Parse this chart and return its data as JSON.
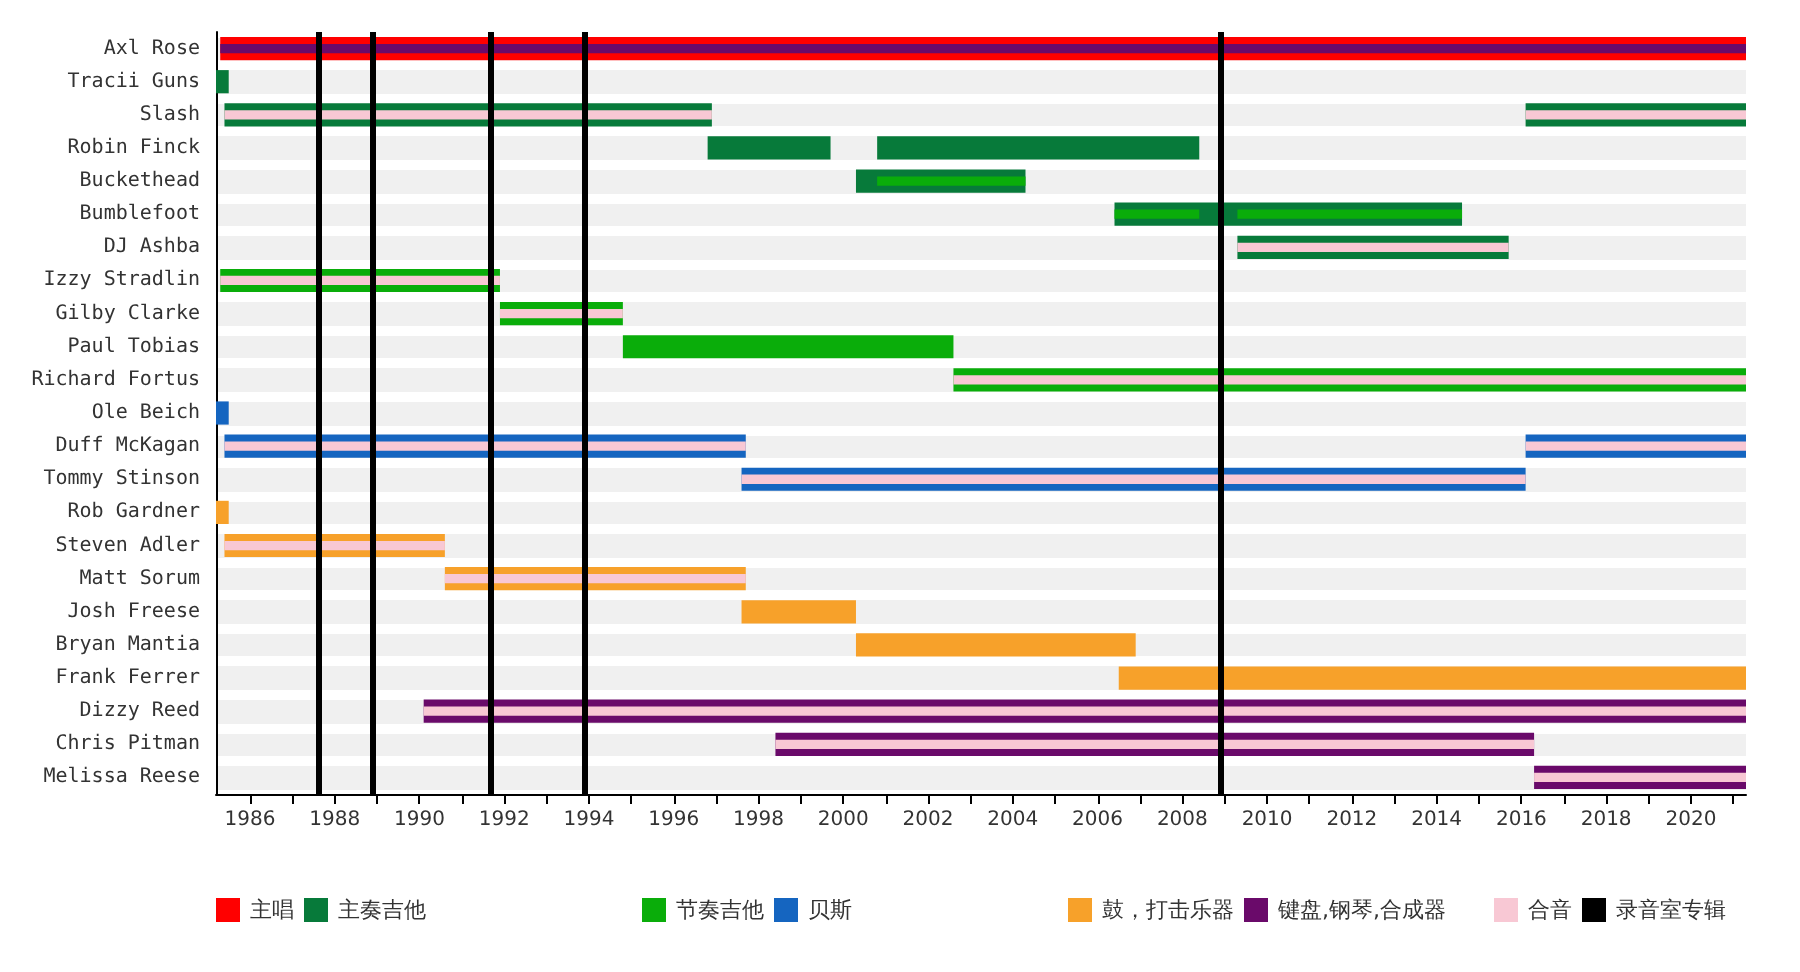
{
  "chart_data": {
    "type": "bar",
    "orientation": "horizontal",
    "categories": [
      "Axl Rose",
      "Tracii Guns",
      "Slash",
      "Robin Finck",
      "Buckethead",
      "Bumblefoot",
      "DJ Ashba",
      "Izzy Stradlin",
      "Gilby Clarke",
      "Paul Tobias",
      "Richard Fortus",
      "Ole Beich",
      "Duff McKagan",
      "Tommy Stinson",
      "Rob Gardner",
      "Steven Adler",
      "Matt Sorum",
      "Josh Freese",
      "Bryan Mantia",
      "Frank Ferrer",
      "Dizzy Reed",
      "Chris Pitman",
      "Melissa Reese"
    ],
    "series": [
      {
        "name": "主唱",
        "color": "#ff0000",
        "base": [
          1985.3,
          null,
          null,
          null,
          null,
          null,
          null,
          null,
          null,
          null,
          null,
          null,
          null,
          null,
          null,
          null,
          null,
          null,
          null,
          null,
          null,
          null,
          null
        ],
        "values": [
          36.0,
          null,
          null,
          null,
          null,
          null,
          null,
          null,
          null,
          null,
          null,
          null,
          null,
          null,
          null,
          null,
          null,
          null,
          null,
          null,
          null,
          null,
          null
        ]
      },
      {
        "name": "主奏吉他",
        "color": "#077a3a",
        "base": [
          null,
          1985.2,
          1985.4,
          1996.8,
          2000.3,
          2006.4,
          2009.3,
          null,
          null,
          null,
          null,
          null,
          null,
          null,
          null,
          null,
          null,
          null,
          null,
          null,
          null,
          null,
          null
        ],
        "values": [
          null,
          0.3,
          11.5,
          2.9,
          4.0,
          8.2,
          6.4,
          null,
          null,
          null,
          null,
          null,
          null,
          null,
          null,
          null,
          null,
          null,
          null,
          null,
          null,
          null,
          null
        ]
      },
      {
        "color": "#077a3a",
        "base": [
          null,
          null,
          2016.1,
          2000.8,
          null,
          null,
          null,
          null,
          null,
          null,
          null,
          null,
          null,
          null,
          null,
          null,
          null,
          null,
          null,
          null,
          null,
          null,
          null
        ],
        "values": [
          null,
          null,
          5.2,
          7.6,
          null,
          null,
          null,
          null,
          null,
          null,
          null,
          null,
          null,
          null,
          null,
          null,
          null,
          null,
          null,
          null,
          null,
          null,
          null
        ]
      },
      {
        "name": "节奏吉他",
        "color": "#0aad0a",
        "base": [
          null,
          null,
          null,
          null,
          2000.8,
          2006.4,
          null,
          1985.3,
          1991.9,
          1994.8,
          2002.6,
          null,
          null,
          null,
          null,
          null,
          null,
          null,
          null,
          null,
          null,
          null,
          null
        ],
        "values": [
          null,
          null,
          null,
          null,
          3.5,
          2.0,
          null,
          6.6,
          2.9,
          7.8,
          18.7,
          null,
          null,
          null,
          null,
          null,
          null,
          null,
          null,
          null,
          null,
          null,
          null
        ]
      },
      {
        "color": "#0aad0a",
        "base": [
          null,
          null,
          null,
          null,
          null,
          2009.3,
          null,
          null,
          null,
          null,
          null,
          null,
          null,
          null,
          null,
          null,
          null,
          null,
          null,
          null,
          null,
          null,
          null
        ],
        "values": [
          null,
          null,
          null,
          null,
          null,
          5.3,
          null,
          null,
          null,
          null,
          null,
          null,
          null,
          null,
          null,
          null,
          null,
          null,
          null,
          null,
          null,
          null,
          null
        ]
      },
      {
        "name": "贝斯",
        "color": "#1565c0",
        "base": [
          null,
          null,
          null,
          null,
          null,
          null,
          null,
          null,
          null,
          null,
          null,
          1985.2,
          1985.4,
          1997.6,
          null,
          null,
          null,
          null,
          null,
          null,
          null,
          null,
          null
        ],
        "values": [
          null,
          null,
          null,
          null,
          null,
          null,
          null,
          null,
          null,
          null,
          null,
          0.3,
          12.3,
          18.5,
          null,
          null,
          null,
          null,
          null,
          null,
          null,
          null,
          null
        ]
      },
      {
        "color": "#1565c0",
        "base": [
          null,
          null,
          null,
          null,
          null,
          null,
          null,
          null,
          null,
          null,
          null,
          null,
          2016.1,
          null,
          null,
          null,
          null,
          null,
          null,
          null,
          null,
          null,
          null
        ],
        "values": [
          null,
          null,
          null,
          null,
          null,
          null,
          null,
          null,
          null,
          null,
          null,
          null,
          5.2,
          null,
          null,
          null,
          null,
          null,
          null,
          null,
          null,
          null,
          null
        ]
      },
      {
        "name": "鼓，打击乐器",
        "color": "#f7a12a",
        "base": [
          null,
          null,
          null,
          null,
          null,
          null,
          null,
          null,
          null,
          null,
          null,
          null,
          null,
          null,
          1985.2,
          1985.4,
          1990.6,
          1997.6,
          2000.3,
          2006.5,
          null,
          null,
          null
        ],
        "values": [
          null,
          null,
          null,
          null,
          null,
          null,
          null,
          null,
          null,
          null,
          null,
          null,
          null,
          null,
          0.3,
          5.2,
          7.1,
          2.7,
          6.6,
          14.8,
          null,
          null,
          null
        ]
      },
      {
        "name": "键盘,钢琴,合成器",
        "color": "#6a0a6a",
        "base": [
          1985.3,
          null,
          null,
          null,
          null,
          null,
          null,
          null,
          null,
          null,
          null,
          null,
          null,
          null,
          null,
          null,
          null,
          null,
          null,
          null,
          1990.1,
          1998.4,
          2016.3
        ],
        "values": [
          36.0,
          null,
          null,
          null,
          null,
          null,
          null,
          null,
          null,
          null,
          null,
          null,
          null,
          null,
          null,
          null,
          null,
          null,
          null,
          null,
          31.2,
          17.9,
          5.0
        ]
      },
      {
        "name": "合音",
        "color": "#f8c8d4",
        "base": [
          null,
          null,
          1985.4,
          null,
          null,
          null,
          2009.3,
          1985.3,
          1991.9,
          null,
          2002.6,
          null,
          1985.4,
          1997.6,
          null,
          1985.4,
          1990.6,
          null,
          null,
          null,
          1990.1,
          1998.4,
          2016.3
        ],
        "values": [
          null,
          null,
          11.5,
          null,
          null,
          null,
          6.4,
          6.6,
          2.9,
          null,
          18.7,
          null,
          12.3,
          18.5,
          null,
          5.2,
          7.1,
          null,
          null,
          null,
          31.2,
          17.9,
          5.0
        ]
      },
      {
        "color": "#f8c8d4",
        "base": [
          null,
          null,
          2016.1,
          null,
          null,
          null,
          null,
          null,
          null,
          null,
          null,
          null,
          2016.1,
          null,
          null,
          null,
          null,
          null,
          null,
          null,
          null,
          null,
          null
        ],
        "values": [
          null,
          null,
          5.2,
          null,
          null,
          null,
          null,
          null,
          null,
          null,
          null,
          null,
          5.2,
          null,
          null,
          null,
          null,
          null,
          null,
          null,
          null,
          null,
          null
        ]
      }
    ],
    "ref_lines": [
      {
        "axis": "x",
        "value": 1987.6,
        "label": "录音室专辑",
        "color": "#000000"
      },
      {
        "axis": "x",
        "value": 1988.9,
        "color": "#000000"
      },
      {
        "axis": "x",
        "value": 1991.7,
        "color": "#000000"
      },
      {
        "axis": "x",
        "value": 1993.9,
        "color": "#000000"
      },
      {
        "axis": "x",
        "value": 2008.9,
        "color": "#000000"
      }
    ],
    "xlim": [
      1985.2,
      2021.3
    ],
    "xticks": [
      1986,
      {
        "value": 1987,
        "label": null
      },
      1988,
      {
        "value": 1989,
        "label": null
      },
      1990,
      {
        "value": 1991,
        "label": null
      },
      1992,
      {
        "value": 1993,
        "label": null
      },
      1994,
      {
        "value": 1995,
        "label": null
      },
      1996,
      {
        "value": 1997,
        "label": null
      },
      1998,
      {
        "value": 1999,
        "label": null
      },
      2000,
      {
        "value": 2001,
        "label": null
      },
      2002,
      {
        "value": 2003,
        "label": null
      },
      2004,
      {
        "value": 2005,
        "label": null
      },
      2006,
      {
        "value": 2007,
        "label": null
      },
      2008,
      {
        "value": 2009,
        "label": null
      },
      2010,
      {
        "value": 2011,
        "label": null
      },
      2012,
      {
        "value": 2013,
        "label": null
      },
      2014,
      {
        "value": 2015,
        "label": null
      },
      2016,
      {
        "value": 2017,
        "label": null
      },
      2018,
      {
        "value": 2019,
        "label": null
      },
      2020,
      {
        "value": 2021,
        "label": null
      }
    ],
    "grid": "y",
    "legend": "bottom"
  }
}
